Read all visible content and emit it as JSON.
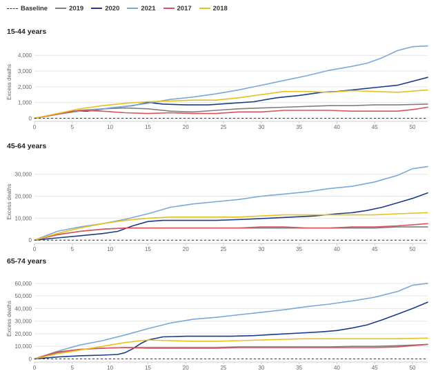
{
  "legend": [
    {
      "label": "Baseline",
      "color": "#333333",
      "dashed": true
    },
    {
      "label": "2019",
      "color": "#7f7f7f"
    },
    {
      "label": "2020",
      "color": "#1a3a8a"
    },
    {
      "label": "2021",
      "color": "#7aa9d6"
    },
    {
      "label": "2017",
      "color": "#d9525a"
    },
    {
      "label": "2018",
      "color": "#e8c21a"
    }
  ],
  "chart_data": [
    {
      "type": "line",
      "title": "15-44 years",
      "ylabel": "Excess deaths",
      "xlim": [
        0,
        52
      ],
      "ylim": [
        -200,
        4800
      ],
      "xticks": [
        0,
        5,
        10,
        15,
        20,
        25,
        30,
        35,
        40,
        45,
        50
      ],
      "yticks": [
        0,
        1000,
        2000,
        3000,
        4000
      ],
      "ytick_labels": [
        "0",
        "1,000",
        "2,000",
        "3,000",
        "4,000"
      ],
      "baseline": 0,
      "series": [
        {
          "name": "2019",
          "color": "#7f7f7f",
          "x": [
            0,
            3,
            6,
            9,
            12,
            15,
            18,
            21,
            24,
            27,
            30,
            33,
            36,
            39,
            42,
            45,
            48,
            52
          ],
          "y": [
            0,
            250,
            500,
            600,
            650,
            600,
            450,
            400,
            500,
            600,
            650,
            700,
            750,
            800,
            800,
            850,
            850,
            900
          ]
        },
        {
          "name": "2020",
          "color": "#1a3a8a",
          "x": [
            0,
            3,
            5,
            7,
            10,
            13,
            15,
            17,
            20,
            23,
            26,
            29,
            32,
            35,
            38,
            40,
            42,
            45,
            48,
            52
          ],
          "y": [
            0,
            250,
            450,
            450,
            650,
            800,
            1000,
            900,
            850,
            850,
            950,
            1050,
            1300,
            1450,
            1650,
            1700,
            1800,
            1950,
            2100,
            2600
          ]
        },
        {
          "name": "2021",
          "color": "#7aa9d6",
          "x": [
            0,
            3,
            6,
            9,
            12,
            15,
            18,
            21,
            24,
            27,
            30,
            33,
            36,
            39,
            42,
            44,
            46,
            48,
            50,
            52
          ],
          "y": [
            0,
            250,
            450,
            600,
            750,
            950,
            1200,
            1350,
            1550,
            1800,
            2100,
            2400,
            2700,
            3050,
            3300,
            3500,
            3850,
            4300,
            4550,
            4600
          ]
        },
        {
          "name": "2017",
          "color": "#d9525a",
          "x": [
            0,
            3,
            6,
            9,
            12,
            15,
            18,
            21,
            24,
            27,
            30,
            33,
            36,
            39,
            42,
            45,
            48,
            50,
            52
          ],
          "y": [
            0,
            250,
            500,
            450,
            350,
            300,
            350,
            300,
            300,
            400,
            400,
            500,
            500,
            500,
            450,
            450,
            450,
            550,
            700
          ]
        },
        {
          "name": "2018",
          "color": "#e8c21a",
          "x": [
            0,
            3,
            6,
            9,
            12,
            15,
            18,
            21,
            24,
            27,
            30,
            33,
            36,
            39,
            42,
            45,
            48,
            52
          ],
          "y": [
            0,
            300,
            600,
            800,
            950,
            1050,
            1100,
            1150,
            1150,
            1300,
            1500,
            1700,
            1700,
            1650,
            1750,
            1700,
            1650,
            1800
          ]
        }
      ]
    },
    {
      "type": "line",
      "title": "45-64 years",
      "ylabel": "Excess deaths",
      "xlim": [
        0,
        52
      ],
      "ylim": [
        -1500,
        36500
      ],
      "xticks": [
        0,
        5,
        10,
        15,
        20,
        25,
        30,
        35,
        40,
        45,
        50
      ],
      "yticks": [
        0,
        10000,
        20000,
        30000
      ],
      "ytick_labels": [
        "0",
        "10,000",
        "20,000",
        "30,000"
      ],
      "baseline": 0,
      "series": [
        {
          "name": "2019",
          "color": "#7f7f7f",
          "x": [
            0,
            3,
            6,
            9,
            12,
            15,
            18,
            21,
            24,
            27,
            30,
            33,
            36,
            39,
            42,
            45,
            48,
            52
          ],
          "y": [
            0,
            2500,
            4000,
            5000,
            5500,
            5500,
            5500,
            5500,
            5500,
            5500,
            5500,
            5500,
            5500,
            5500,
            5500,
            5500,
            6000,
            6000
          ]
        },
        {
          "name": "2020",
          "color": "#1a3a8a",
          "x": [
            0,
            3,
            6,
            9,
            11,
            13,
            15,
            17,
            20,
            24,
            28,
            31,
            34,
            37,
            40,
            42,
            44,
            46,
            48,
            50,
            52
          ],
          "y": [
            0,
            1000,
            2000,
            3000,
            4000,
            6500,
            8500,
            9000,
            9000,
            9000,
            9500,
            10000,
            10500,
            11000,
            12000,
            12500,
            13500,
            15000,
            17000,
            19000,
            21500
          ]
        },
        {
          "name": "2021",
          "color": "#7aa9d6",
          "x": [
            0,
            3,
            6,
            9,
            12,
            15,
            18,
            21,
            24,
            27,
            30,
            33,
            36,
            39,
            42,
            45,
            48,
            50,
            52
          ],
          "y": [
            0,
            4000,
            6000,
            7500,
            9500,
            12000,
            15000,
            16500,
            17500,
            18500,
            20000,
            21000,
            22000,
            23500,
            24500,
            26500,
            29500,
            32500,
            33500
          ]
        },
        {
          "name": "2017",
          "color": "#d9525a",
          "x": [
            0,
            3,
            6,
            9,
            12,
            15,
            18,
            21,
            24,
            27,
            30,
            33,
            36,
            39,
            42,
            45,
            48,
            50,
            52
          ],
          "y": [
            0,
            2500,
            4000,
            5000,
            5500,
            5500,
            5500,
            5500,
            5500,
            5500,
            6000,
            6000,
            5500,
            5500,
            6000,
            6000,
            6500,
            7000,
            7500
          ]
        },
        {
          "name": "2018",
          "color": "#e8c21a",
          "x": [
            0,
            3,
            6,
            9,
            12,
            15,
            18,
            21,
            24,
            27,
            30,
            33,
            36,
            39,
            42,
            45,
            48,
            52
          ],
          "y": [
            0,
            3000,
            5500,
            7500,
            9000,
            10000,
            10500,
            10500,
            10500,
            10500,
            11000,
            11500,
            11500,
            11500,
            11500,
            11500,
            12000,
            12500
          ]
        }
      ]
    },
    {
      "type": "line",
      "title": "65-74 years",
      "ylabel": "Excess deaths",
      "xlim": [
        0,
        52
      ],
      "ylim": [
        -2500,
        66500
      ],
      "xticks": [
        0,
        5,
        10,
        15,
        20,
        25,
        30,
        35,
        40,
        45,
        50
      ],
      "yticks": [
        0,
        10000,
        20000,
        30000,
        40000,
        50000,
        60000
      ],
      "ytick_labels": [
        "0",
        "10,000",
        "20,000",
        "30,000",
        "40,000",
        "50,000",
        "60,000"
      ],
      "baseline": 0,
      "series": [
        {
          "name": "2019",
          "color": "#7f7f7f",
          "x": [
            0,
            3,
            6,
            9,
            12,
            15,
            18,
            21,
            24,
            27,
            30,
            33,
            36,
            39,
            42,
            45,
            48,
            52
          ],
          "y": [
            0,
            5000,
            7500,
            8500,
            9000,
            9000,
            9000,
            9000,
            9000,
            9500,
            9500,
            9500,
            9500,
            9500,
            10000,
            10000,
            10500,
            11500
          ]
        },
        {
          "name": "2020",
          "color": "#1a3a8a",
          "x": [
            0,
            3,
            6,
            9,
            11,
            12,
            13,
            14,
            15,
            17,
            20,
            23,
            26,
            29,
            32,
            35,
            38,
            40,
            42,
            44,
            46,
            48,
            50,
            52
          ],
          "y": [
            0,
            1500,
            2500,
            3000,
            3500,
            5000,
            8000,
            12000,
            15000,
            17500,
            18000,
            18000,
            18000,
            18500,
            19500,
            20500,
            21500,
            22500,
            24500,
            27000,
            31000,
            35500,
            40000,
            45000
          ]
        },
        {
          "name": "2021",
          "color": "#7aa9d6",
          "x": [
            0,
            3,
            6,
            9,
            12,
            15,
            18,
            21,
            24,
            27,
            30,
            33,
            36,
            39,
            42,
            45,
            48,
            50,
            52
          ],
          "y": [
            0,
            6000,
            11000,
            14500,
            19000,
            24000,
            28500,
            31500,
            33000,
            35000,
            37000,
            39000,
            41500,
            43500,
            46000,
            49000,
            53500,
            58500,
            60000
          ]
        },
        {
          "name": "2017",
          "color": "#d9525a",
          "x": [
            0,
            3,
            6,
            9,
            12,
            15,
            18,
            21,
            24,
            27,
            30,
            33,
            36,
            39,
            42,
            45,
            48,
            52
          ],
          "y": [
            0,
            5500,
            7500,
            8500,
            9000,
            8500,
            8500,
            8500,
            8500,
            9000,
            9000,
            9000,
            9000,
            9000,
            9000,
            9000,
            9500,
            11500
          ]
        },
        {
          "name": "2018",
          "color": "#e8c21a",
          "x": [
            0,
            3,
            6,
            9,
            12,
            15,
            18,
            21,
            24,
            27,
            30,
            33,
            36,
            39,
            42,
            45,
            48,
            52
          ],
          "y": [
            0,
            4000,
            7000,
            10000,
            13000,
            15000,
            14500,
            14000,
            14000,
            14500,
            15000,
            15500,
            16000,
            16000,
            16000,
            16000,
            16000,
            16500
          ]
        }
      ]
    }
  ]
}
